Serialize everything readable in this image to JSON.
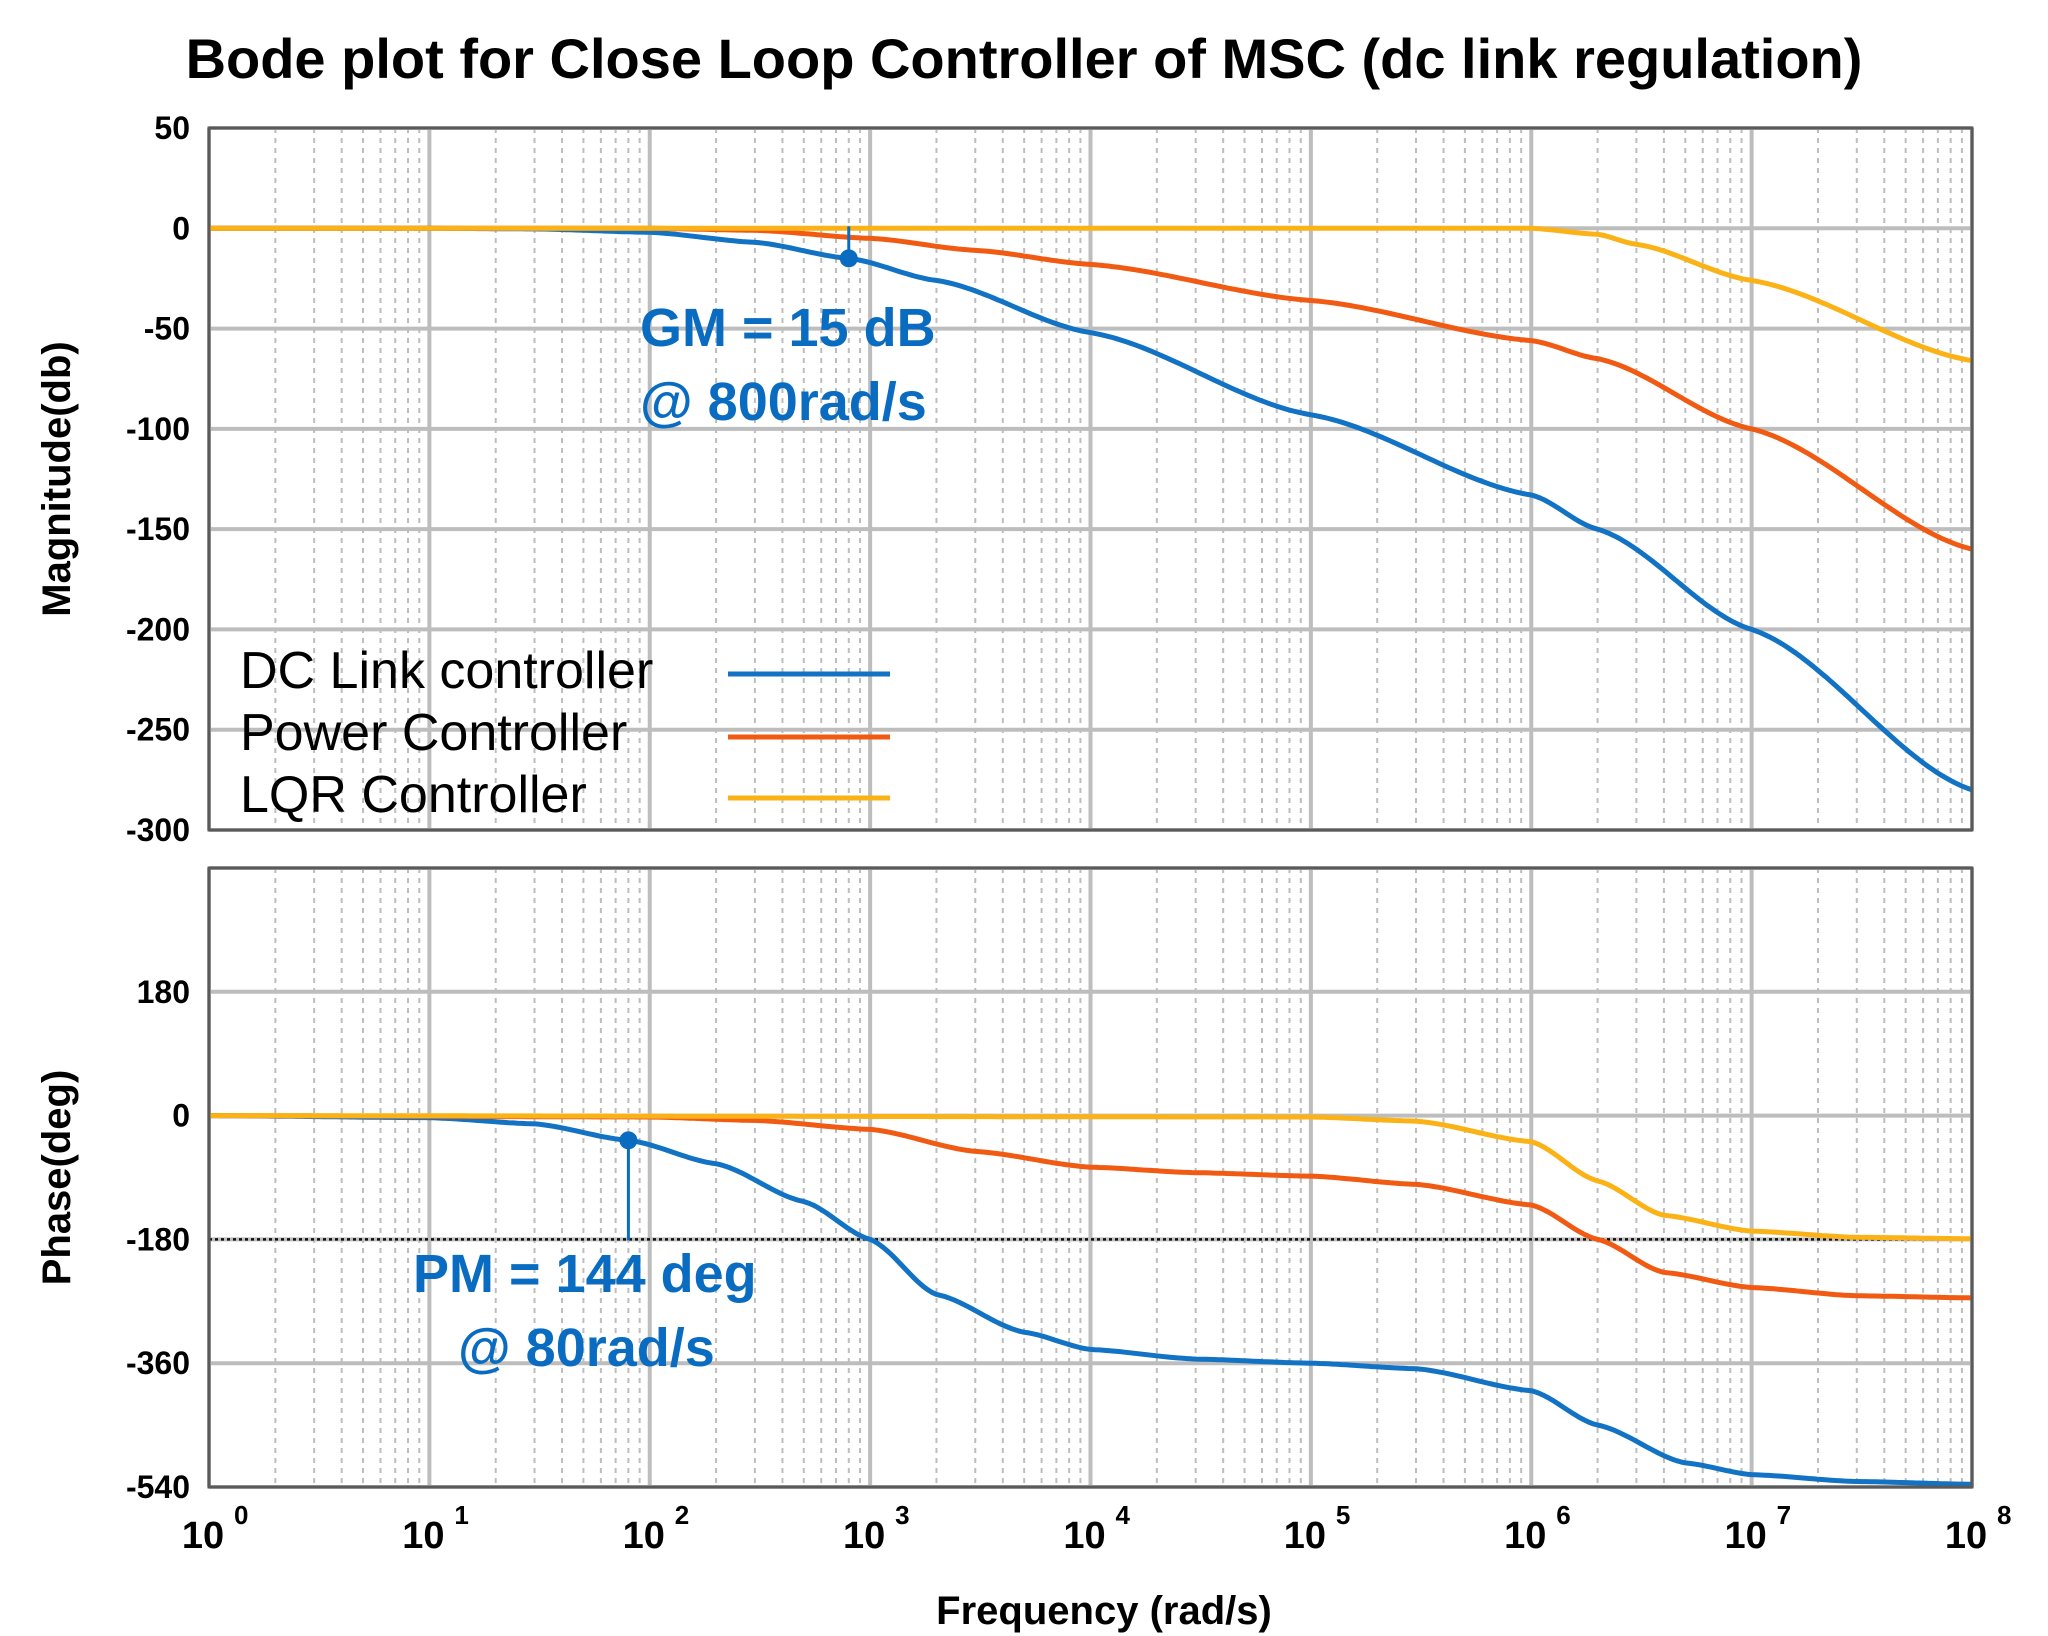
{
  "title": "Bode plot for Close Loop Controller of MSC (dc link regulation)",
  "colors": {
    "dc_link": "#1272c4",
    "power": "#f05a12",
    "lqr": "#fbb216",
    "annotation": "#0a6cc0",
    "grid": "#bdbdbd"
  },
  "legend": [
    {
      "label": "DC Link controller",
      "color": "#1272c4"
    },
    {
      "label": "Power Controller",
      "color": "#f05a12"
    },
    {
      "label": "LQR Controller",
      "color": "#fbb216"
    }
  ],
  "annotations": {
    "gm_line1": "GM = 15 dB",
    "gm_line2": "@ 800rad/s",
    "pm_line1": "PM = 144 deg",
    "pm_line2": "@ 80rad/s"
  },
  "chart_data": [
    {
      "type": "line",
      "panel": "magnitude",
      "ylabel": "Magnitude(db)",
      "ylim": [
        -300,
        50
      ],
      "yticks": [
        50,
        0,
        -50,
        -100,
        -150,
        -200,
        -250,
        -300
      ],
      "xscale": "log",
      "xlim": [
        1,
        100000000
      ],
      "grid": true,
      "legend_placement": "lower-left",
      "marker": {
        "x": 800,
        "y": -15
      },
      "series": [
        {
          "name": "DC Link controller",
          "x": [
            1,
            10,
            30,
            100,
            300,
            800,
            2000,
            10000,
            100000,
            1000000,
            2000000,
            10000000,
            100000000
          ],
          "y": [
            0,
            0,
            -0.3,
            -2,
            -7,
            -15,
            -26,
            -52,
            -93,
            -133,
            -150,
            -200,
            -280
          ]
        },
        {
          "name": "Power Controller",
          "x": [
            1,
            100,
            300,
            1000,
            3000,
            10000,
            100000,
            1000000,
            2000000,
            10000000,
            100000000
          ],
          "y": [
            0,
            0,
            -1,
            -5,
            -11,
            -18,
            -36,
            -56,
            -65,
            -100,
            -160
          ]
        },
        {
          "name": "LQR Controller",
          "x": [
            1,
            100000,
            1000000,
            2000000,
            3000000,
            10000000,
            100000000
          ],
          "y": [
            0,
            0,
            0,
            -3,
            -8,
            -26,
            -66
          ]
        }
      ]
    },
    {
      "type": "line",
      "panel": "phase",
      "ylabel": "Phase(deg)",
      "xlabel": "Frequency  (rad/s)",
      "ylim": [
        -540,
        360
      ],
      "yticks": [
        180,
        0,
        -180,
        -360,
        -540
      ],
      "xscale": "log",
      "xlim": [
        1,
        100000000
      ],
      "xticks": [
        "10^0",
        "10^1",
        "10^2",
        "10^3",
        "10^4",
        "10^5",
        "10^6",
        "10^7",
        "10^8"
      ],
      "grid": true,
      "reference_line": -180,
      "marker": {
        "x": 80,
        "y": -36
      },
      "series": [
        {
          "name": "DC Link controller",
          "x": [
            1,
            10,
            30,
            80,
            200,
            500,
            1000,
            2000,
            5000,
            10000,
            30000,
            100000,
            300000,
            1000000,
            2000000,
            5000000,
            10000000,
            30000000,
            100000000
          ],
          "y": [
            0,
            -3,
            -12,
            -36,
            -70,
            -125,
            -180,
            -260,
            -315,
            -340,
            -354,
            -360,
            -368,
            -400,
            -450,
            -505,
            -522,
            -532,
            -536
          ]
        },
        {
          "name": "Power Controller",
          "x": [
            1,
            100,
            300,
            1000,
            3000,
            10000,
            30000,
            100000,
            300000,
            1000000,
            2000000,
            4000000,
            10000000,
            30000000,
            100000000
          ],
          "y": [
            0,
            -2,
            -7,
            -20,
            -52,
            -75,
            -83,
            -88,
            -100,
            -130,
            -180,
            -228,
            -250,
            -262,
            -265
          ]
        },
        {
          "name": "LQR Controller",
          "x": [
            1,
            100000,
            300000,
            1000000,
            2000000,
            4000000,
            10000000,
            30000000,
            100000000
          ],
          "y": [
            0,
            -2,
            -8,
            -38,
            -95,
            -145,
            -168,
            -177,
            -179
          ]
        }
      ]
    }
  ]
}
